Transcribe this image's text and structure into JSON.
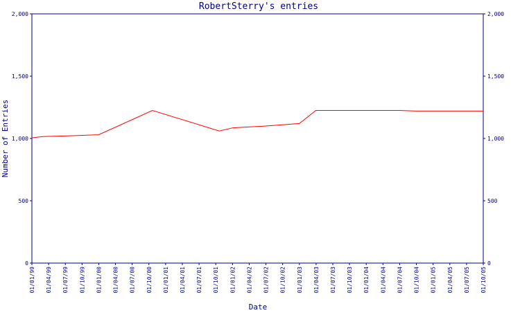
{
  "chart_data": {
    "type": "line",
    "title": "RobertSterry's entries",
    "xlabel": "Date",
    "ylabel": "Number of Entries",
    "ylim": [
      0,
      2000
    ],
    "y_ticks": [
      0,
      500,
      1000,
      1500,
      2000
    ],
    "y_tick_labels": [
      "0",
      "500",
      "1,000",
      "1,500",
      "2,000"
    ],
    "x_tick_labels": [
      "01/01/99",
      "01/04/99",
      "01/07/99",
      "01/10/99",
      "01/01/00",
      "01/04/00",
      "01/07/00",
      "01/10/00",
      "01/01/01",
      "01/04/01",
      "01/07/01",
      "01/10/01",
      "01/01/02",
      "01/04/02",
      "01/07/02",
      "01/10/02",
      "01/01/03",
      "01/04/03",
      "01/07/03",
      "01/10/03",
      "01/01/04",
      "01/04/04",
      "01/07/04",
      "01/10/04",
      "01/01/05",
      "01/04/05",
      "01/07/05",
      "01/10/05"
    ],
    "grid": false,
    "series": [
      {
        "color": "#ff0000",
        "x": [
          "1999-01-01",
          "1999-03-01",
          "1999-07-01",
          "1999-10-01",
          "2000-01-01",
          "2000-10-20",
          "2001-10-20",
          "2002-01-01",
          "2002-03-01",
          "2002-07-01",
          "2002-10-01",
          "2003-01-01",
          "2003-04-01",
          "2004-07-01",
          "2004-10-01",
          "2005-10-01"
        ],
        "y": [
          1005,
          1015,
          1020,
          1025,
          1030,
          1225,
          1060,
          1085,
          1090,
          1100,
          1110,
          1120,
          1225,
          1225,
          1220,
          1220
        ]
      }
    ]
  }
}
